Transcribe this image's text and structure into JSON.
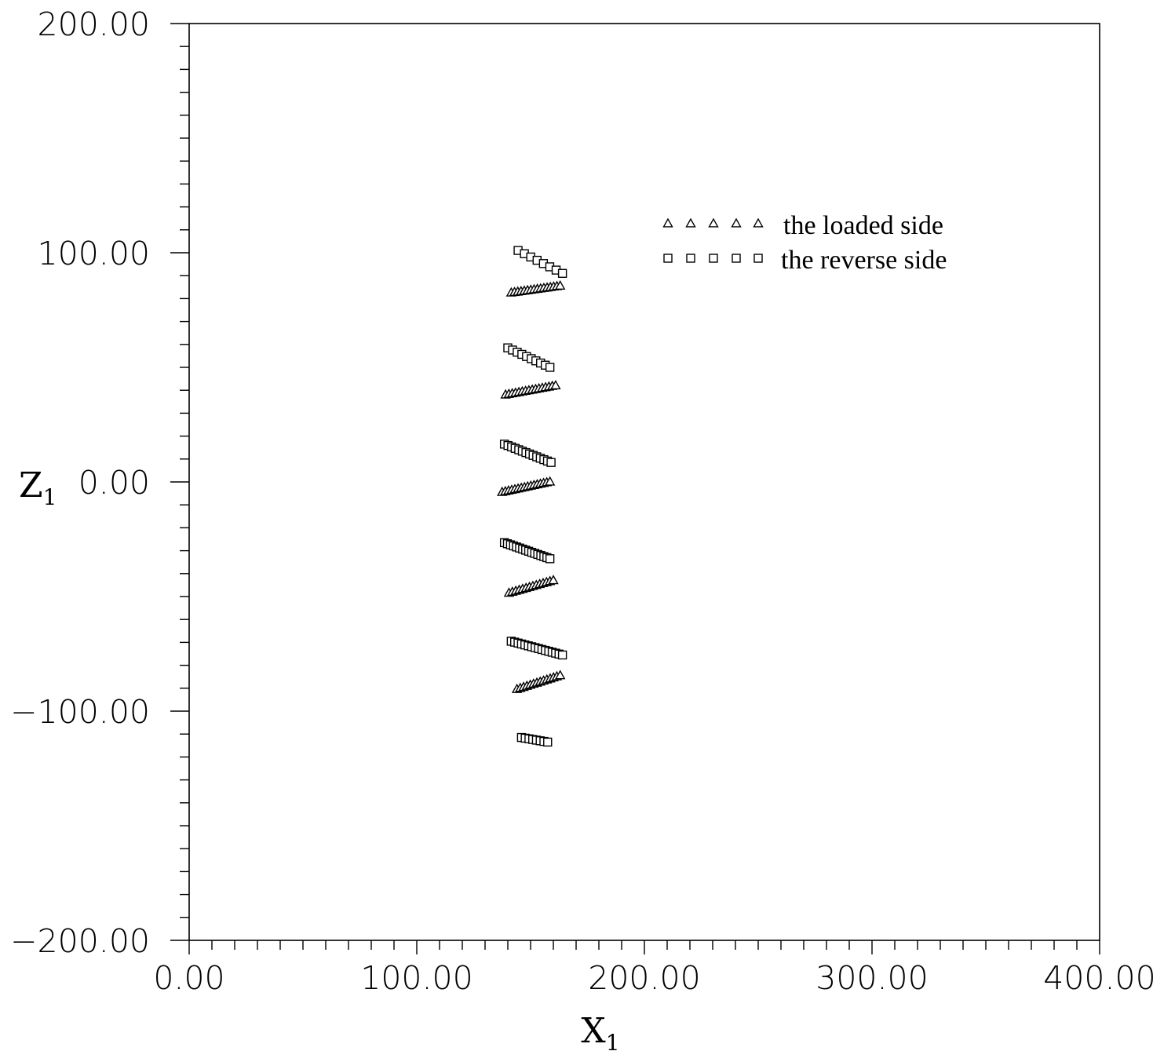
{
  "chart_data": {
    "type": "scatter",
    "xlabel": {
      "main": "X",
      "sub": "1"
    },
    "ylabel": {
      "main": "Z",
      "sub": "1"
    },
    "xlim": [
      0,
      400
    ],
    "ylim": [
      -200,
      200
    ],
    "x_ticks": [
      0,
      100,
      200,
      300,
      400
    ],
    "y_ticks": [
      -200,
      -100,
      0,
      100,
      200
    ],
    "x_tick_labels": [
      "0.00",
      "100.00",
      "200.00",
      "300.00",
      "400.00"
    ],
    "y_tick_labels": [
      "−200.00",
      "−100.00",
      "0.00",
      "100.00",
      "200.00"
    ],
    "grid": false,
    "legend_position": "top-right",
    "legend": [
      {
        "label": "the loaded side",
        "marker": "triangle"
      },
      {
        "label": "the reverse side",
        "marker": "square"
      }
    ],
    "series": [
      {
        "name": "the loaded side",
        "marker": "triangle",
        "segments": [
          {
            "from": [
              141.5,
              82.5
            ],
            "to": [
              163.0,
              85.5
            ],
            "n": 16
          },
          {
            "from": [
              139.0,
              38.0
            ],
            "to": [
              161.0,
              42.0
            ],
            "n": 16
          },
          {
            "from": [
              137.5,
              -4.5
            ],
            "to": [
              158.5,
              0.0
            ],
            "n": 16
          },
          {
            "from": [
              140.5,
              -48.5
            ],
            "to": [
              160.0,
              -43.0
            ],
            "n": 14
          },
          {
            "from": [
              144.0,
              -90.5
            ],
            "to": [
              163.0,
              -84.5
            ],
            "n": 14
          }
        ]
      },
      {
        "name": "the reverse side",
        "marker": "square",
        "segments": [
          {
            "from": [
              144.5,
              101.0
            ],
            "to": [
              164.0,
              91.0
            ],
            "n": 8
          },
          {
            "from": [
              140.0,
              58.5
            ],
            "to": [
              158.5,
              50.0
            ],
            "n": 10
          },
          {
            "from": [
              138.5,
              16.5
            ],
            "to": [
              159.0,
              8.5
            ],
            "n": 14
          },
          {
            "from": [
              138.5,
              -26.5
            ],
            "to": [
              158.5,
              -33.5
            ],
            "n": 16
          },
          {
            "from": [
              141.5,
              -69.5
            ],
            "to": [
              164.0,
              -75.5
            ],
            "n": 16
          },
          {
            "from": [
              146.0,
              -111.5
            ],
            "to": [
              157.5,
              -113.5
            ],
            "n": 8
          }
        ]
      }
    ]
  }
}
